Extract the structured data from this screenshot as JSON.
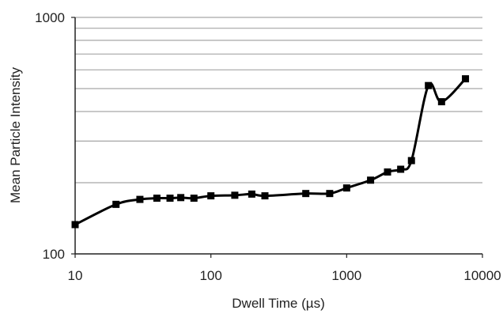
{
  "chart_data": {
    "type": "line",
    "title": "",
    "xlabel": "Dwell Time (µs)",
    "ylabel": "Mean Particle Intensity",
    "x_scale": "log",
    "y_scale": "log",
    "xlim": [
      10,
      10000
    ],
    "ylim": [
      100,
      1000
    ],
    "x_tick_labels": [
      "10",
      "100",
      "1000",
      "10000"
    ],
    "y_tick_labels": [
      "100",
      "1000"
    ],
    "grid": "horizontal",
    "legend": "none",
    "series": [
      {
        "marker": "square",
        "color": "#000000",
        "x": [
          10,
          20,
          30,
          40,
          50,
          60,
          75,
          100,
          150,
          200,
          250,
          500,
          750,
          1000,
          1500,
          2000,
          2500,
          3000,
          4000,
          5000,
          7500
        ],
        "y": [
          133,
          162,
          170,
          172,
          172,
          173,
          172,
          176,
          177,
          179,
          176,
          180,
          180,
          190,
          205,
          222,
          228,
          248,
          515,
          440,
          550
        ]
      }
    ]
  }
}
